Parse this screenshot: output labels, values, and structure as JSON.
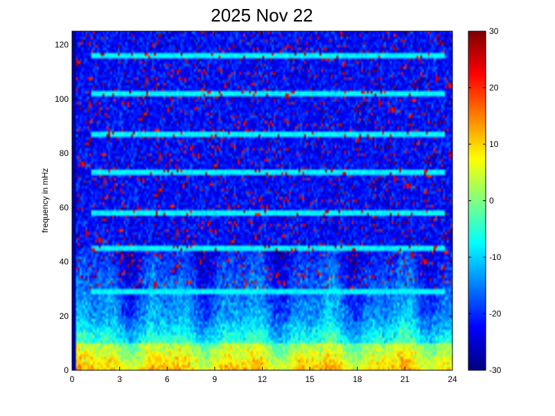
{
  "chart_data": {
    "type": "heatmap",
    "title": "2025 Nov 22",
    "xlabel": "",
    "ylabel": "frequency in mHz",
    "xlim": [
      0,
      24
    ],
    "ylim": [
      0,
      125
    ],
    "x_ticks": [
      0,
      3,
      6,
      9,
      12,
      15,
      18,
      21,
      24
    ],
    "y_ticks": [
      0,
      20,
      40,
      60,
      80,
      100,
      120
    ],
    "colorbar": {
      "range": [
        -30,
        30
      ],
      "ticks": [
        -30,
        -20,
        -10,
        0,
        10,
        20,
        30
      ],
      "colormap": "jet"
    },
    "grid": false,
    "horizontal_lines_mHz": [
      116,
      102,
      87,
      73,
      58,
      45,
      29
    ],
    "value_description": "power: mostly -30..-10 above 40 mHz with scattered 20..30 speckle; 0..30 concentrated below 20 mHz, strongest 0..10 mHz"
  },
  "colors": {
    "background": "#ffffff",
    "colormap_low": "#00008f",
    "colormap_high": "#800000"
  }
}
